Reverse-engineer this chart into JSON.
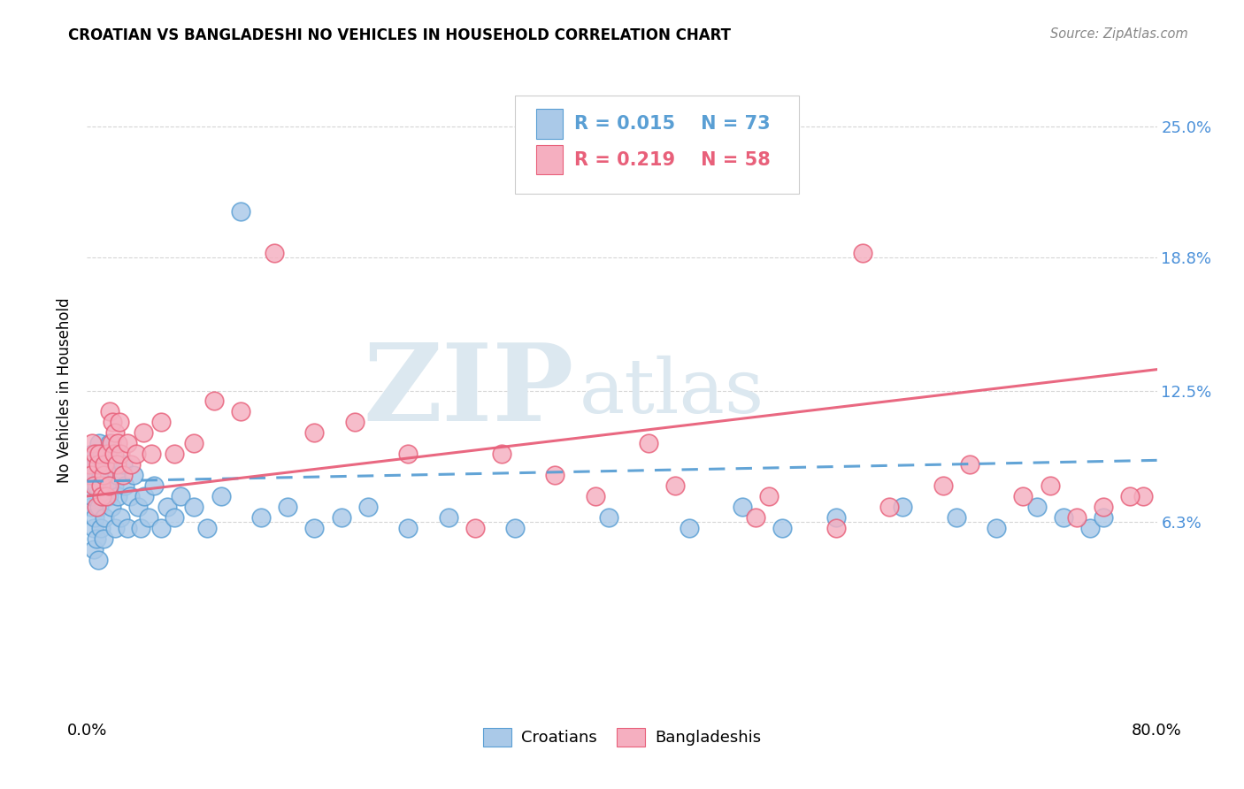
{
  "title": "CROATIAN VS BANGLADESHI NO VEHICLES IN HOUSEHOLD CORRELATION CHART",
  "source": "Source: ZipAtlas.com",
  "ylabel": "No Vehicles in Household",
  "ytick_labels": [
    "6.3%",
    "12.5%",
    "18.8%",
    "25.0%"
  ],
  "ytick_values": [
    0.063,
    0.125,
    0.188,
    0.25
  ],
  "xlim": [
    0.0,
    0.8
  ],
  "ylim": [
    -0.03,
    0.28
  ],
  "legend_r1": "0.015",
  "legend_n1": "73",
  "legend_r2": "0.219",
  "legend_n2": "58",
  "croatian_color": "#aac9e8",
  "bangladeshi_color": "#f5afc0",
  "croatian_edge_color": "#5a9fd4",
  "bangladeshi_edge_color": "#e8607a",
  "croatian_line_color": "#5a9fd4",
  "bangladeshi_line_color": "#e8607a",
  "watermark_zip": "ZIP",
  "watermark_atlas": "atlas",
  "watermark_color": "#dce8f0",
  "background_color": "#ffffff",
  "grid_color": "#cccccc",
  "right_tick_color": "#4a90d9",
  "cro_x": [
    0.002,
    0.003,
    0.003,
    0.004,
    0.004,
    0.005,
    0.005,
    0.005,
    0.006,
    0.006,
    0.007,
    0.007,
    0.008,
    0.008,
    0.009,
    0.009,
    0.01,
    0.01,
    0.011,
    0.011,
    0.012,
    0.012,
    0.013,
    0.013,
    0.014,
    0.015,
    0.016,
    0.017,
    0.018,
    0.019,
    0.02,
    0.021,
    0.022,
    0.023,
    0.025,
    0.027,
    0.028,
    0.03,
    0.032,
    0.035,
    0.038,
    0.04,
    0.043,
    0.046,
    0.05,
    0.055,
    0.06,
    0.065,
    0.07,
    0.08,
    0.09,
    0.1,
    0.115,
    0.13,
    0.15,
    0.17,
    0.19,
    0.21,
    0.24,
    0.27,
    0.32,
    0.39,
    0.45,
    0.49,
    0.52,
    0.56,
    0.61,
    0.65,
    0.68,
    0.71,
    0.73,
    0.75,
    0.76
  ],
  "cro_y": [
    0.085,
    0.09,
    0.07,
    0.095,
    0.075,
    0.06,
    0.085,
    0.05,
    0.09,
    0.065,
    0.08,
    0.055,
    0.095,
    0.045,
    0.1,
    0.07,
    0.085,
    0.06,
    0.095,
    0.075,
    0.055,
    0.09,
    0.08,
    0.065,
    0.085,
    0.09,
    0.075,
    0.1,
    0.07,
    0.095,
    0.08,
    0.06,
    0.085,
    0.075,
    0.065,
    0.09,
    0.08,
    0.06,
    0.075,
    0.085,
    0.07,
    0.06,
    0.075,
    0.065,
    0.08,
    0.06,
    0.07,
    0.065,
    0.075,
    0.07,
    0.06,
    0.075,
    0.21,
    0.065,
    0.07,
    0.06,
    0.065,
    0.07,
    0.06,
    0.065,
    0.06,
    0.065,
    0.06,
    0.07,
    0.06,
    0.065,
    0.07,
    0.065,
    0.06,
    0.07,
    0.065,
    0.06,
    0.065
  ],
  "ban_x": [
    0.002,
    0.003,
    0.004,
    0.005,
    0.006,
    0.007,
    0.008,
    0.009,
    0.01,
    0.011,
    0.012,
    0.013,
    0.014,
    0.015,
    0.016,
    0.017,
    0.018,
    0.019,
    0.02,
    0.021,
    0.022,
    0.023,
    0.024,
    0.025,
    0.027,
    0.03,
    0.033,
    0.037,
    0.042,
    0.048,
    0.055,
    0.065,
    0.08,
    0.095,
    0.115,
    0.14,
    0.17,
    0.2,
    0.24,
    0.29,
    0.35,
    0.42,
    0.5,
    0.58,
    0.66,
    0.72,
    0.76,
    0.79,
    0.31,
    0.38,
    0.44,
    0.51,
    0.56,
    0.6,
    0.64,
    0.7,
    0.74,
    0.78
  ],
  "ban_y": [
    0.09,
    0.085,
    0.1,
    0.08,
    0.095,
    0.07,
    0.09,
    0.095,
    0.08,
    0.075,
    0.085,
    0.09,
    0.075,
    0.095,
    0.08,
    0.115,
    0.1,
    0.11,
    0.095,
    0.105,
    0.09,
    0.1,
    0.11,
    0.095,
    0.085,
    0.1,
    0.09,
    0.095,
    0.105,
    0.095,
    0.11,
    0.095,
    0.1,
    0.12,
    0.115,
    0.19,
    0.105,
    0.11,
    0.095,
    0.06,
    0.085,
    0.1,
    0.065,
    0.19,
    0.09,
    0.08,
    0.07,
    0.075,
    0.095,
    0.075,
    0.08,
    0.075,
    0.06,
    0.07,
    0.08,
    0.075,
    0.065,
    0.075
  ],
  "cro_line_x": [
    0.0,
    0.8
  ],
  "cro_line_y": [
    0.082,
    0.092
  ],
  "ban_line_x": [
    0.0,
    0.8
  ],
  "ban_line_y": [
    0.075,
    0.135
  ]
}
